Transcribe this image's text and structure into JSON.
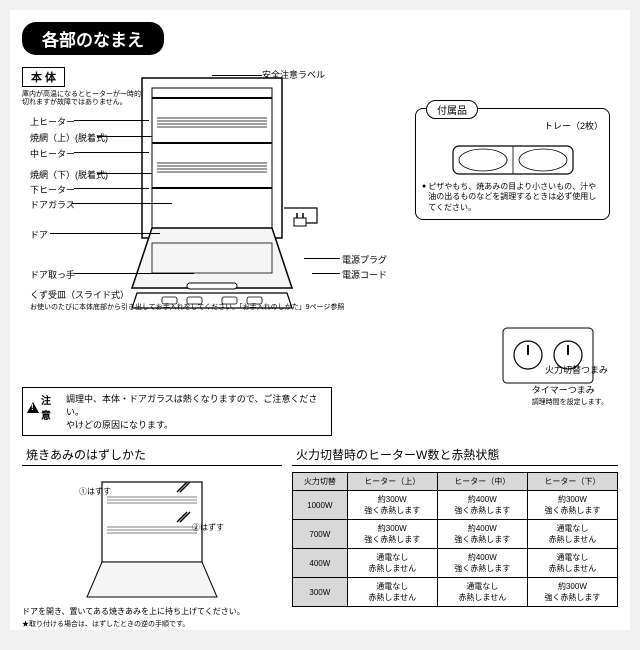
{
  "title": "各部のなまえ",
  "body_label": "本 体",
  "body_note": "庫内が高温になるとヒーターが一時的に切れますが故障ではありません。",
  "parts": {
    "safety": "安全注意ラベル",
    "upper_heater": "上ヒーター",
    "grill_upper": "焼網（上）(脱着式)",
    "mid_heater": "中ヒーター",
    "grill_lower": "焼網（下）(脱着式)",
    "lower_heater": "下ヒーター",
    "door_glass": "ドアガラス",
    "door": "ドア",
    "handle": "ドア取っ手",
    "crumb": "くず受皿（スライド式）",
    "crumb_note": "お使いのたびに本体底部から引き出してお手入れをしてください。「お手入れのしかた」9ページ参照",
    "plug": "電源プラグ",
    "cord": "電源コード",
    "power_knob": "火力切替つまみ",
    "timer_knob": "タイマーつまみ",
    "timer_note": "調理時間を設定します。"
  },
  "caution_label": "注意",
  "caution_text": "調理中、本体・ドアガラスは熱くなりますので、ご注意ください。\nやけどの原因になります。",
  "accessory": {
    "label": "付属品",
    "tray": "トレー（2枚）",
    "note": "ピザやもち、焼あみの目より小さいもの、汁や油の出るものなどを調理するときは必ず使用してください。"
  },
  "removal": {
    "title": "焼きあみのはずしかた",
    "step1": "①はずす",
    "step2": "②はずす",
    "note": "ドアを開き、置いてある焼きあみを上に持ち上げてください。",
    "star": "★取り付ける場合は、はずしたときの逆の手順です。"
  },
  "table": {
    "title": "火力切替時のヒーターW数と赤熱状態",
    "headers": [
      "火力切替",
      "ヒーター（上）",
      "ヒーター（中）",
      "ヒーター（下）"
    ],
    "rows": [
      [
        "1000W",
        "約300W\n強く赤熱します",
        "約400W\n強く赤熱します",
        "約300W\n強く赤熱します"
      ],
      [
        "700W",
        "約300W\n強く赤熱します",
        "約400W\n強く赤熱します",
        "通電なし\n赤熱しません"
      ],
      [
        "400W",
        "通電なし\n赤熱しません",
        "約400W\n強く赤熱します",
        "通電なし\n赤熱しません"
      ],
      [
        "300W",
        "通電なし\n赤熱しません",
        "通電なし\n赤熱しません",
        "約300W\n強く赤熱します"
      ]
    ]
  }
}
